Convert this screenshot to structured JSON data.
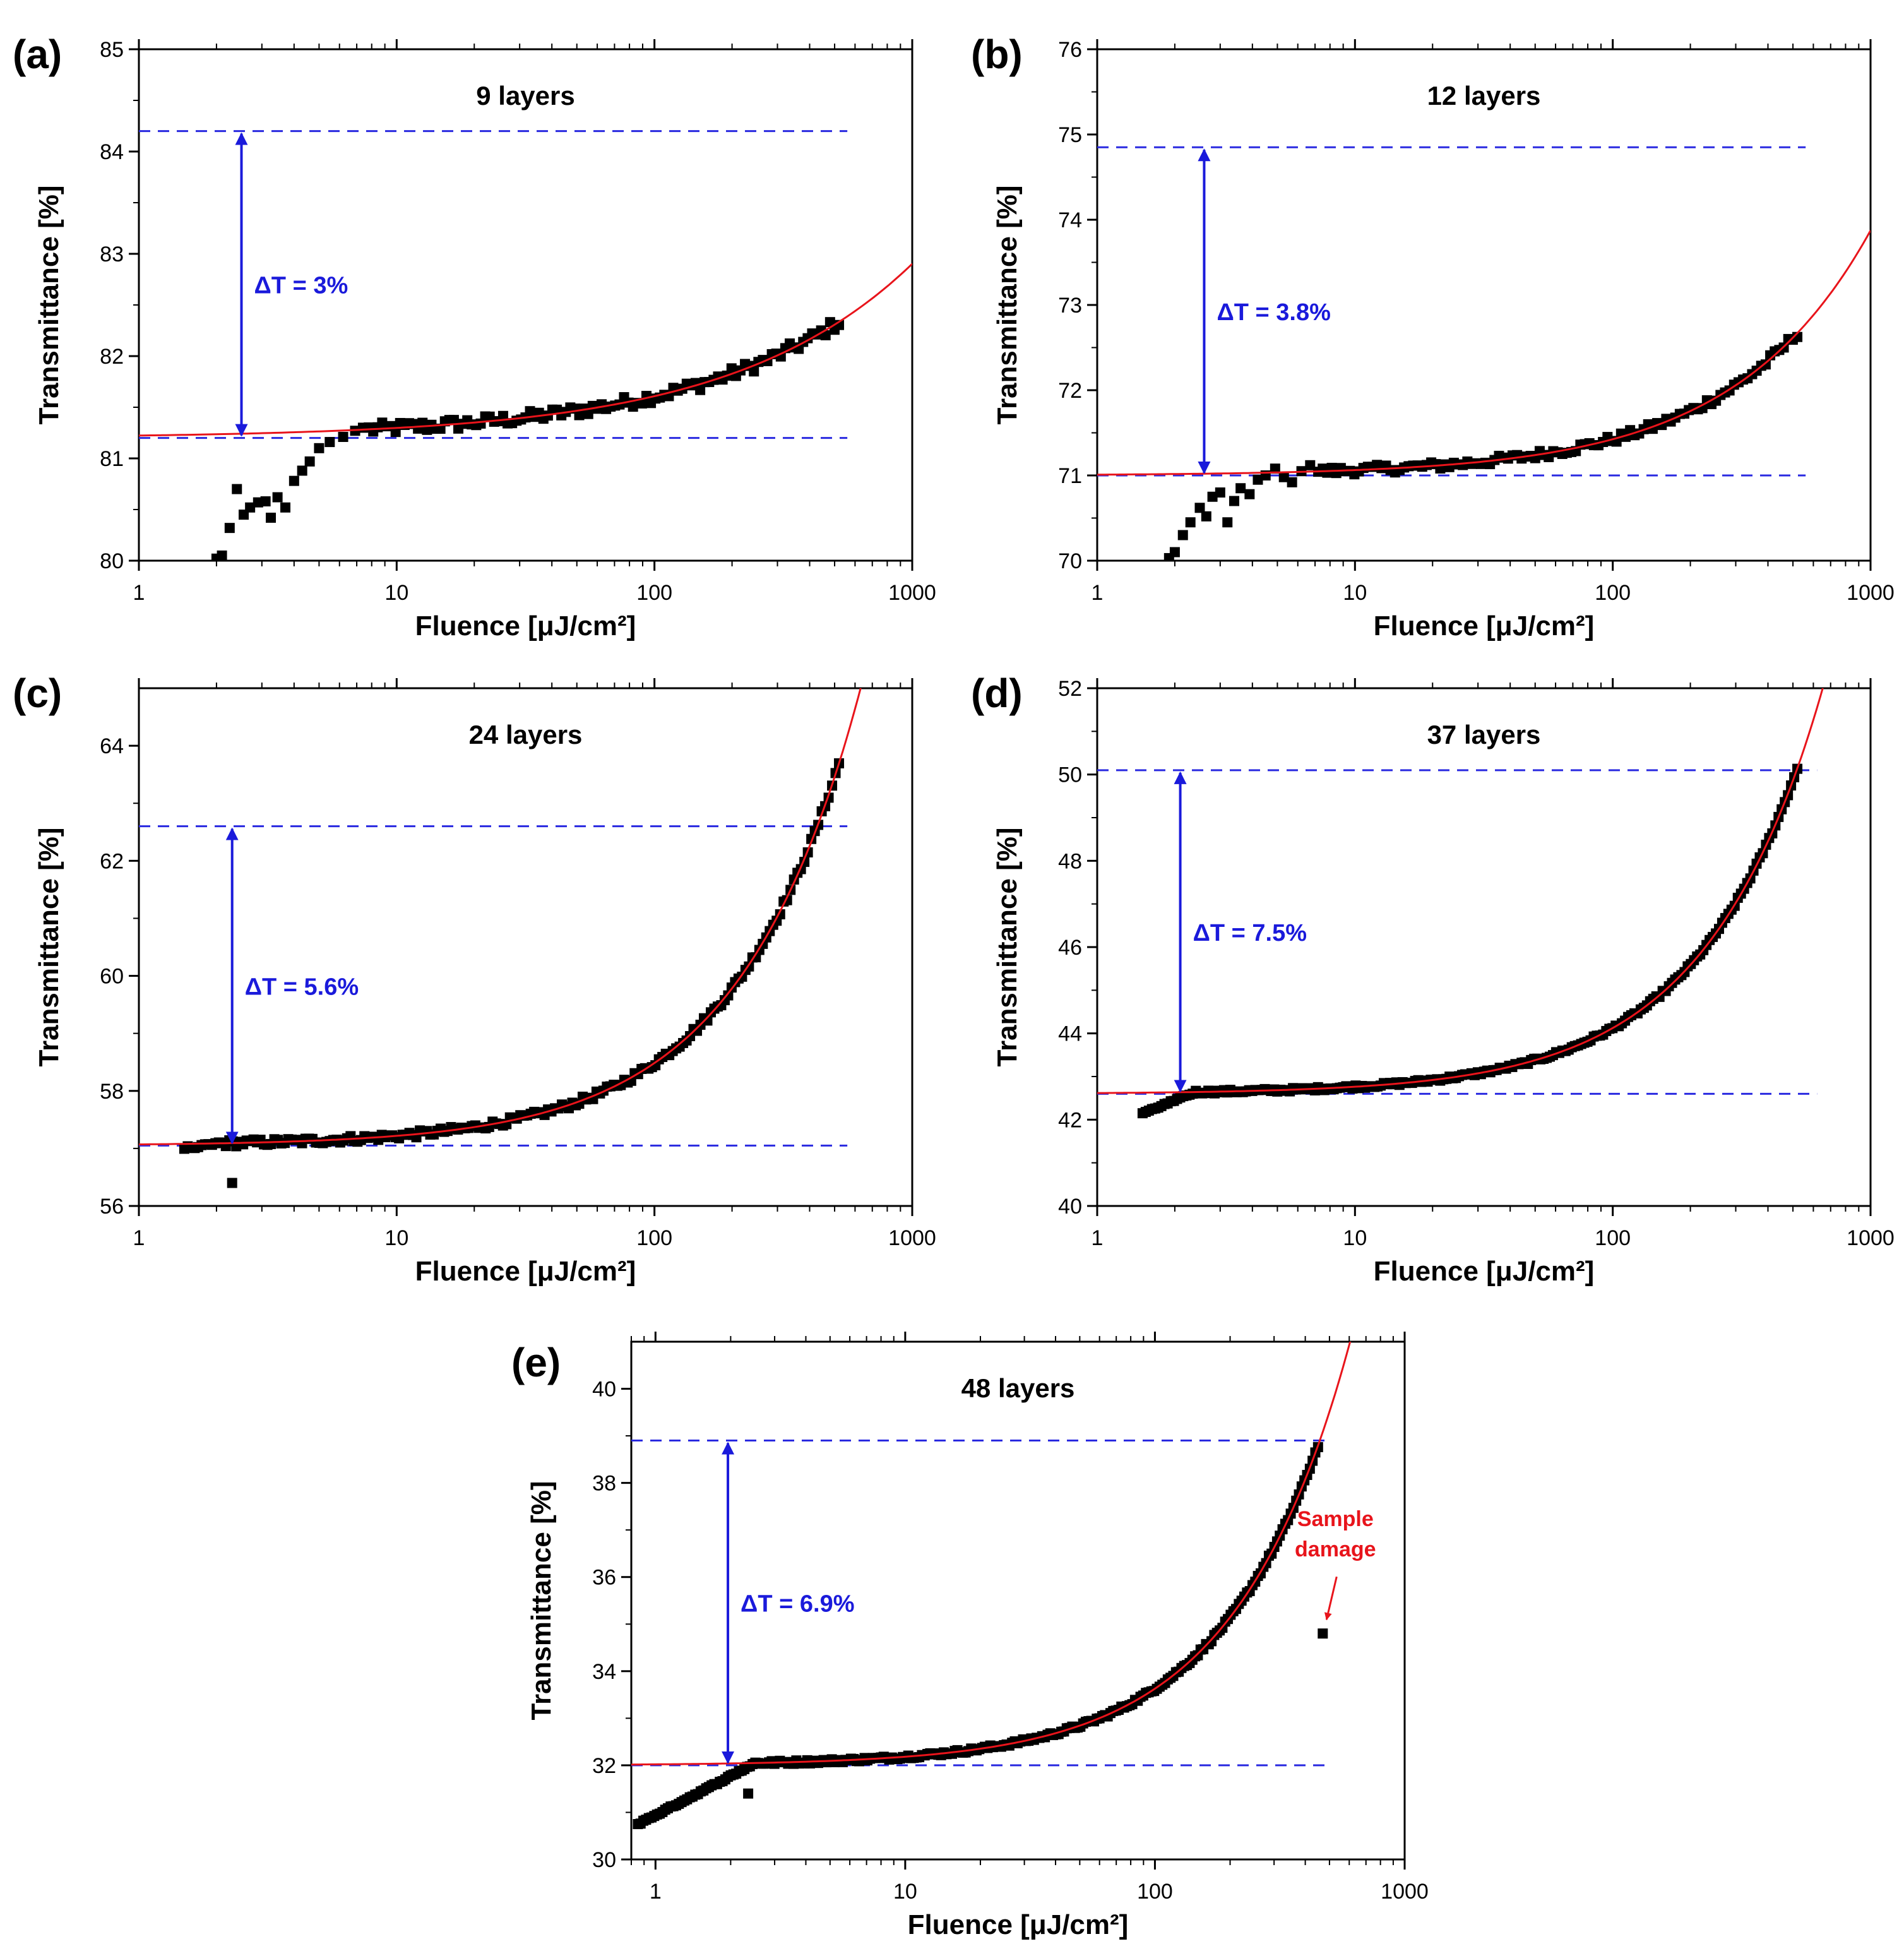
{
  "colors": {
    "data_marker": "#000000",
    "fit_line": "#e8141b",
    "reference_lines": "#2a2ae0",
    "delta_arrow": "#1a1adb",
    "note": "#e8141b"
  },
  "chart_data": [
    {
      "panel": "(a)",
      "type": "scatter",
      "title": "9 layers",
      "xlabel": "Fluence [μJ/cm²]",
      "ylabel": "Transmittance [%]",
      "xscale": "log",
      "xlim": [
        1,
        1000
      ],
      "ylim": [
        80,
        85
      ],
      "xticks": [
        1,
        10,
        100,
        1000
      ],
      "xtick_labels": [
        "1",
        "10",
        "100",
        "1000"
      ],
      "yticks": [
        80,
        81,
        82,
        83,
        84,
        85
      ],
      "ytick_labels": [
        "80",
        "81",
        "82",
        "83",
        "84",
        "85"
      ],
      "grid": false,
      "reference_lines": [
        81.2,
        84.2
      ],
      "reference_x_end": 560,
      "delta": {
        "x": 2.5,
        "from": 81.2,
        "to": 84.2,
        "label": "ΔT = 3%"
      },
      "fit": {
        "base": 81.2,
        "coef": 0.0235,
        "exponent": 0.62,
        "x_end": 1000
      },
      "measured": {
        "x_start": 2.0,
        "x_end": 520,
        "count": 140,
        "noise": 0.06,
        "anomaly_end": 7.5,
        "anomaly_start_value": 80.02,
        "low_points": [
          [
            2.0,
            80.02
          ],
          [
            2.1,
            80.05
          ],
          [
            2.25,
            80.32
          ],
          [
            2.4,
            80.7
          ],
          [
            2.55,
            80.45
          ],
          [
            2.7,
            80.52
          ],
          [
            2.9,
            80.57
          ],
          [
            3.1,
            80.58
          ],
          [
            3.25,
            80.42
          ],
          [
            3.45,
            80.62
          ],
          [
            3.7,
            80.52
          ],
          [
            4.0,
            80.78
          ],
          [
            4.3,
            80.88
          ],
          [
            4.6,
            80.97
          ],
          [
            5.0,
            81.1
          ],
          [
            5.5,
            81.16
          ],
          [
            6.2,
            81.21
          ],
          [
            6.9,
            81.27
          ],
          [
            7.4,
            81.3
          ]
        ]
      }
    },
    {
      "panel": "(b)",
      "type": "scatter",
      "title": "12 layers",
      "xlabel": "Fluence [μJ/cm²]",
      "ylabel": "Transmittance [%]",
      "xscale": "log",
      "xlim": [
        1,
        1000
      ],
      "ylim": [
        70,
        76
      ],
      "xticks": [
        1,
        10,
        100,
        1000
      ],
      "xtick_labels": [
        "1",
        "10",
        "100",
        "1000"
      ],
      "yticks": [
        70,
        71,
        72,
        73,
        74,
        75,
        76
      ],
      "ytick_labels": [
        "70",
        "71",
        "72",
        "73",
        "74",
        "75",
        "76"
      ],
      "grid": false,
      "reference_lines": [
        71.0,
        74.85
      ],
      "reference_x_end": 560,
      "delta": {
        "x": 2.6,
        "from": 71.0,
        "to": 74.85,
        "label": "ΔT = 3.8%"
      },
      "fit": {
        "base": 71.0,
        "coef": 0.0093,
        "exponent": 0.83,
        "x_end": 1000
      },
      "measured": {
        "x_start": 1.9,
        "x_end": 520,
        "count": 140,
        "noise": 0.05,
        "anomaly_end": 7.0,
        "anomaly_start_value": 70.02,
        "low_points": [
          [
            1.9,
            70.03
          ],
          [
            2.0,
            70.1
          ],
          [
            2.15,
            70.3
          ],
          [
            2.3,
            70.45
          ],
          [
            2.5,
            70.62
          ],
          [
            2.65,
            70.52
          ],
          [
            2.8,
            70.75
          ],
          [
            3.0,
            70.8
          ],
          [
            3.2,
            70.45
          ],
          [
            3.4,
            70.7
          ],
          [
            3.6,
            70.85
          ],
          [
            3.9,
            70.78
          ],
          [
            4.2,
            70.95
          ],
          [
            4.5,
            71.0
          ],
          [
            4.9,
            71.08
          ],
          [
            5.3,
            70.98
          ],
          [
            5.7,
            70.92
          ],
          [
            6.2,
            71.05
          ],
          [
            6.7,
            71.12
          ]
        ]
      }
    },
    {
      "panel": "(c)",
      "type": "scatter",
      "title": "24 layers",
      "xlabel": "Fluence [μJ/cm²]",
      "ylabel": "Transmittance [%]",
      "xscale": "log",
      "xlim": [
        1,
        1000
      ],
      "ylim": [
        56,
        65
      ],
      "xticks": [
        1,
        10,
        100,
        1000
      ],
      "xtick_labels": [
        "1",
        "10",
        "100",
        "1000"
      ],
      "yticks": [
        56,
        58,
        60,
        62,
        64
      ],
      "ytick_labels": [
        "56",
        "58",
        "60",
        "62",
        "64"
      ],
      "grid": false,
      "reference_lines": [
        57.05,
        62.6
      ],
      "reference_x_end": 560,
      "delta": {
        "x": 2.3,
        "from": 57.05,
        "to": 62.6,
        "label": "ΔT = 5.6%"
      },
      "fit": {
        "base": 57.05,
        "coef": 0.0198,
        "exponent": 0.93,
        "x_end": 1000
      },
      "measured": {
        "x_start": 1.5,
        "x_end": 520,
        "count": 190,
        "noise": 0.06,
        "anomaly_end": 2.0,
        "anomaly_start_value": 57.0,
        "low_points": [
          [
            2.3,
            56.4
          ]
        ]
      }
    },
    {
      "panel": "(d)",
      "type": "scatter",
      "title": "37 layers",
      "xlabel": "Fluence [μJ/cm²]",
      "ylabel": "Transmittance [%]",
      "xscale": "log",
      "xlim": [
        1,
        1000
      ],
      "ylim": [
        40,
        52
      ],
      "xticks": [
        1,
        10,
        100,
        1000
      ],
      "xtick_labels": [
        "1",
        "10",
        "100",
        "1000"
      ],
      "yticks": [
        40,
        42,
        44,
        46,
        48,
        50,
        52
      ],
      "ytick_labels": [
        "40",
        "42",
        "44",
        "46",
        "48",
        "50",
        "52"
      ],
      "grid": false,
      "reference_lines": [
        42.6,
        50.1
      ],
      "reference_x_end": 620,
      "delta": {
        "x": 2.1,
        "from": 42.6,
        "to": 50.1,
        "label": "ΔT = 7.5%"
      },
      "fit": {
        "base": 42.6,
        "coef": 0.0175,
        "exponent": 0.97,
        "x_end": 1000
      },
      "measured": {
        "x_start": 1.5,
        "x_end": 520,
        "count": 210,
        "noise": 0.04,
        "anomaly_end": 2.4,
        "anomaly_start_value": 42.15,
        "low_points": []
      }
    },
    {
      "panel": "(e)",
      "type": "scatter",
      "title": "48 layers",
      "xlabel": "Fluence [μJ/cm²]",
      "ylabel": "Transmittance [%]",
      "xscale": "log",
      "xlim": [
        0.8,
        1000
      ],
      "ylim": [
        30,
        41
      ],
      "xticks": [
        1,
        10,
        100,
        1000
      ],
      "xtick_labels": [
        "1",
        "10",
        "100",
        "1000"
      ],
      "yticks": [
        30,
        32,
        34,
        36,
        38,
        40
      ],
      "ytick_labels": [
        "30",
        "32",
        "34",
        "36",
        "38",
        "40"
      ],
      "grid": false,
      "reference_lines": [
        32.0,
        38.9
      ],
      "reference_x_end": 480,
      "delta": {
        "x": 1.95,
        "from": 32.0,
        "to": 38.9,
        "label": "ΔT = 6.9%"
      },
      "fit": {
        "base": 32.0,
        "coef": 0.0205,
        "exponent": 0.95,
        "x_end": 1000
      },
      "measured": {
        "x_start": 0.85,
        "x_end": 450,
        "count": 250,
        "noise": 0.04,
        "anomaly_end": 2.5,
        "anomaly_start_value": 30.75,
        "low_points": [
          [
            2.35,
            31.4
          ],
          [
            470,
            34.8
          ]
        ]
      },
      "annotation": {
        "lines": [
          "Sample",
          "damage"
        ],
        "x": 470,
        "y": 34.8
      }
    }
  ]
}
